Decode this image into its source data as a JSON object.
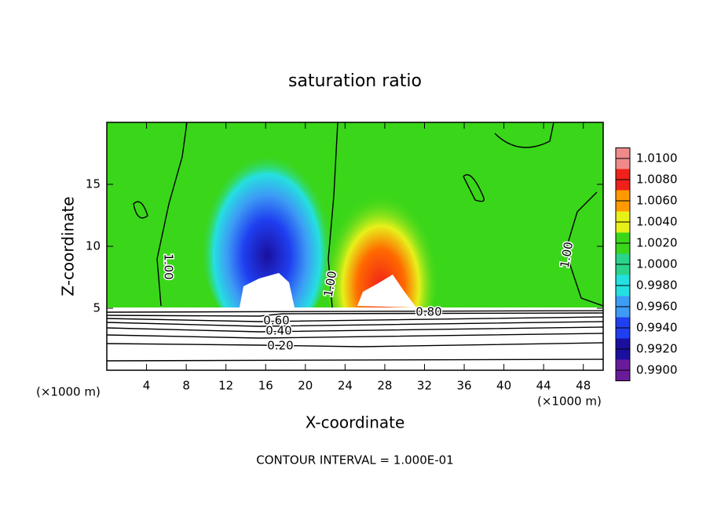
{
  "chart_data": {
    "type": "contour",
    "title": "saturation ratio",
    "xlabel": "X-coordinate",
    "ylabel": "Z-coordinate",
    "x_unit_label": "(×1000 m)",
    "y_unit_label": "(×1000 m)",
    "footer": "CONTOUR INTERVAL = 1.000E-01",
    "xlim": [
      0,
      50
    ],
    "xticks": [
      4,
      8,
      12,
      16,
      20,
      24,
      28,
      32,
      36,
      40,
      44,
      48
    ],
    "ylim": [
      0,
      20
    ],
    "yticks": [
      5,
      10,
      15
    ],
    "contour_labels": [
      "1.00",
      "1.00",
      "1.00",
      "0.80",
      "0.60",
      "0.40",
      "0.20"
    ],
    "colorbar": {
      "levels": [
        {
          "value": 0.99,
          "label": "0.9900"
        },
        {
          "value": 0.992,
          "label": "0.9920"
        },
        {
          "value": 0.994,
          "label": "0.9940"
        },
        {
          "value": 0.996,
          "label": "0.9960"
        },
        {
          "value": 0.998,
          "label": "0.9980"
        },
        {
          "value": 1.0,
          "label": "1.0000"
        },
        {
          "value": 1.002,
          "label": "1.0020"
        },
        {
          "value": 1.004,
          "label": "1.0040"
        },
        {
          "value": 1.006,
          "label": "1.0060"
        },
        {
          "value": 1.008,
          "label": "1.0080"
        },
        {
          "value": 1.01,
          "label": "1.0100"
        }
      ],
      "colors": [
        "#6a1b9a",
        "#1a0f9e",
        "#1f3ff0",
        "#3d9cf5",
        "#25e0e0",
        "#2ad48a",
        "#3ad61a",
        "#e8f01a",
        "#ff9a00",
        "#f0201a",
        "#f08a8a"
      ]
    }
  }
}
